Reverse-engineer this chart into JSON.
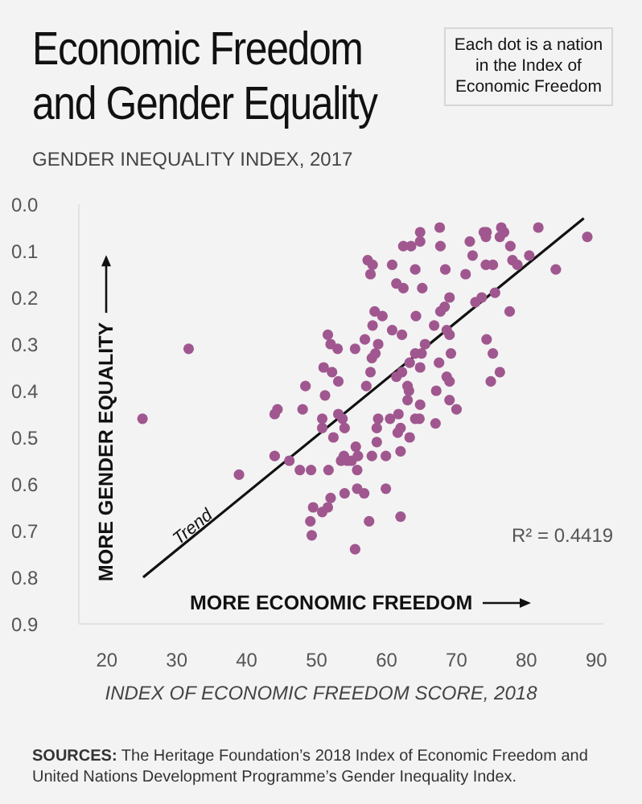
{
  "chart_data": {
    "type": "scatter",
    "title": "Economic Freedom and Gender Equality",
    "ylabel": "GENDER INEQUALITY INDEX, 2017",
    "xlabel": "INDEX OF ECONOMIC FREEDOM SCORE, 2018",
    "annotations": [
      "Each dot is a nation in the Index of Economic Freedom",
      "MORE GENDER EQUALITY",
      "MORE ECONOMIC FREEDOM",
      "R² = 0.4419",
      "SOURCES: The Heritage Foundation’s 2018 Index of Economic Freedom and United Nations Development Programme’s Gender Inequality Index."
    ],
    "xlim": [
      16,
      91
    ],
    "xticks": [
      20,
      30,
      40,
      50,
      60,
      70,
      80,
      90
    ],
    "ylim": [
      0.9,
      0
    ],
    "yticks": [
      {
        "value": 0,
        "label": "0.0"
      },
      {
        "value": 0.1,
        "label": "0.1"
      },
      {
        "value": 0.2,
        "label": "0.2"
      },
      {
        "value": 0.3,
        "label": "0.3"
      },
      {
        "value": 0.4,
        "label": "0.4"
      },
      {
        "value": 0.5,
        "label": "0.5"
      },
      {
        "value": 0.6,
        "label": "0.6"
      },
      {
        "value": 0.7,
        "label": "0.7"
      },
      {
        "value": 0.8,
        "label": "0.8"
      },
      {
        "value": 0.9,
        "label": "0.9"
      }
    ],
    "grid": false,
    "legend": false,
    "marker": "circle",
    "series": [
      {
        "color": "#a0578f",
        "x": [
          31.7,
          25.1,
          51.6,
          52.0,
          51.0,
          52.2,
          48.4,
          51.2,
          44.4,
          44.0,
          48.0,
          50.8,
          50.8,
          52.4,
          44.0,
          46.1,
          47.6,
          49.2,
          51.7,
          38.9,
          52.0,
          49.5,
          50.8,
          51.6,
          49.1,
          49.3,
          64.8,
          67.6,
          62.4,
          63.5,
          64.8,
          67.7,
          71.9,
          73.9,
          74.3,
          74.2,
          76.4,
          76.8,
          76.2,
          81.7,
          88.7,
          77.7,
          72.3,
          78.0,
          78.7,
          80.4,
          84.2,
          57.3,
          58.0,
          57.7,
          60.8,
          64.1,
          68.4,
          71.3,
          74.2,
          75.2,
          61.4,
          62.4,
          65.1,
          69.0,
          68.3,
          67.7,
          72.7,
          73.6,
          75.5,
          77.6,
          58.3,
          59.4,
          58.0,
          64.2,
          66.8,
          60.8,
          62.2,
          68.6,
          69.0,
          56.9,
          58.8,
          53.0,
          55.5,
          58.4,
          57.9,
          57.7,
          65.5,
          64.1,
          65.0,
          69.2,
          74.3,
          75.2,
          76.2,
          74.9,
          53.1,
          61.4,
          62.2,
          63.3,
          64.8,
          67.5,
          57.1,
          63.0,
          63.2,
          68.6,
          69.0,
          67.1,
          63.0,
          69.0,
          64.8,
          70.0,
          53.1,
          53.7,
          61.7,
          62.0,
          61.6,
          64.1,
          64.7,
          60.5,
          58.8,
          58.6,
          67.0,
          54.0,
          63.3,
          55.6,
          58.6,
          62.0,
          53.9,
          53.5,
          54.4,
          55.0,
          55.9,
          57.9,
          59.9,
          55.8,
          54.0,
          55.8,
          56.8,
          59.9,
          57.5,
          62.0,
          55.5
        ],
        "values": [
          0.31,
          0.46,
          0.28,
          0.3,
          0.35,
          0.36,
          0.39,
          0.41,
          0.44,
          0.45,
          0.44,
          0.46,
          0.48,
          0.5,
          0.54,
          0.55,
          0.57,
          0.57,
          0.57,
          0.58,
          0.63,
          0.65,
          0.66,
          0.65,
          0.68,
          0.71,
          0.06,
          0.05,
          0.09,
          0.09,
          0.08,
          0.09,
          0.08,
          0.06,
          0.06,
          0.07,
          0.05,
          0.06,
          0.07,
          0.05,
          0.07,
          0.09,
          0.11,
          0.12,
          0.13,
          0.11,
          0.14,
          0.12,
          0.13,
          0.15,
          0.13,
          0.14,
          0.14,
          0.15,
          0.13,
          0.13,
          0.17,
          0.18,
          0.18,
          0.2,
          0.22,
          0.23,
          0.21,
          0.2,
          0.19,
          0.23,
          0.23,
          0.24,
          0.26,
          0.24,
          0.26,
          0.27,
          0.28,
          0.27,
          0.28,
          0.29,
          0.3,
          0.31,
          0.31,
          0.32,
          0.33,
          0.36,
          0.3,
          0.32,
          0.32,
          0.32,
          0.29,
          0.32,
          0.36,
          0.38,
          0.38,
          0.37,
          0.36,
          0.34,
          0.35,
          0.34,
          0.39,
          0.39,
          0.4,
          0.37,
          0.38,
          0.4,
          0.42,
          0.42,
          0.43,
          0.44,
          0.45,
          0.46,
          0.45,
          0.48,
          0.49,
          0.46,
          0.46,
          0.46,
          0.46,
          0.48,
          0.47,
          0.48,
          0.5,
          0.52,
          0.51,
          0.53,
          0.54,
          0.55,
          0.55,
          0.55,
          0.54,
          0.54,
          0.54,
          0.57,
          0.62,
          0.61,
          0.62,
          0.61,
          0.68,
          0.67,
          0.74
        ]
      },
      {
        "type": "line",
        "name": "Trend",
        "color": "#111111",
        "marker": "none",
        "line_style": "solid",
        "x": [
          25.2,
          88.2
        ],
        "values": [
          0.8,
          0.03
        ]
      }
    ]
  }
}
